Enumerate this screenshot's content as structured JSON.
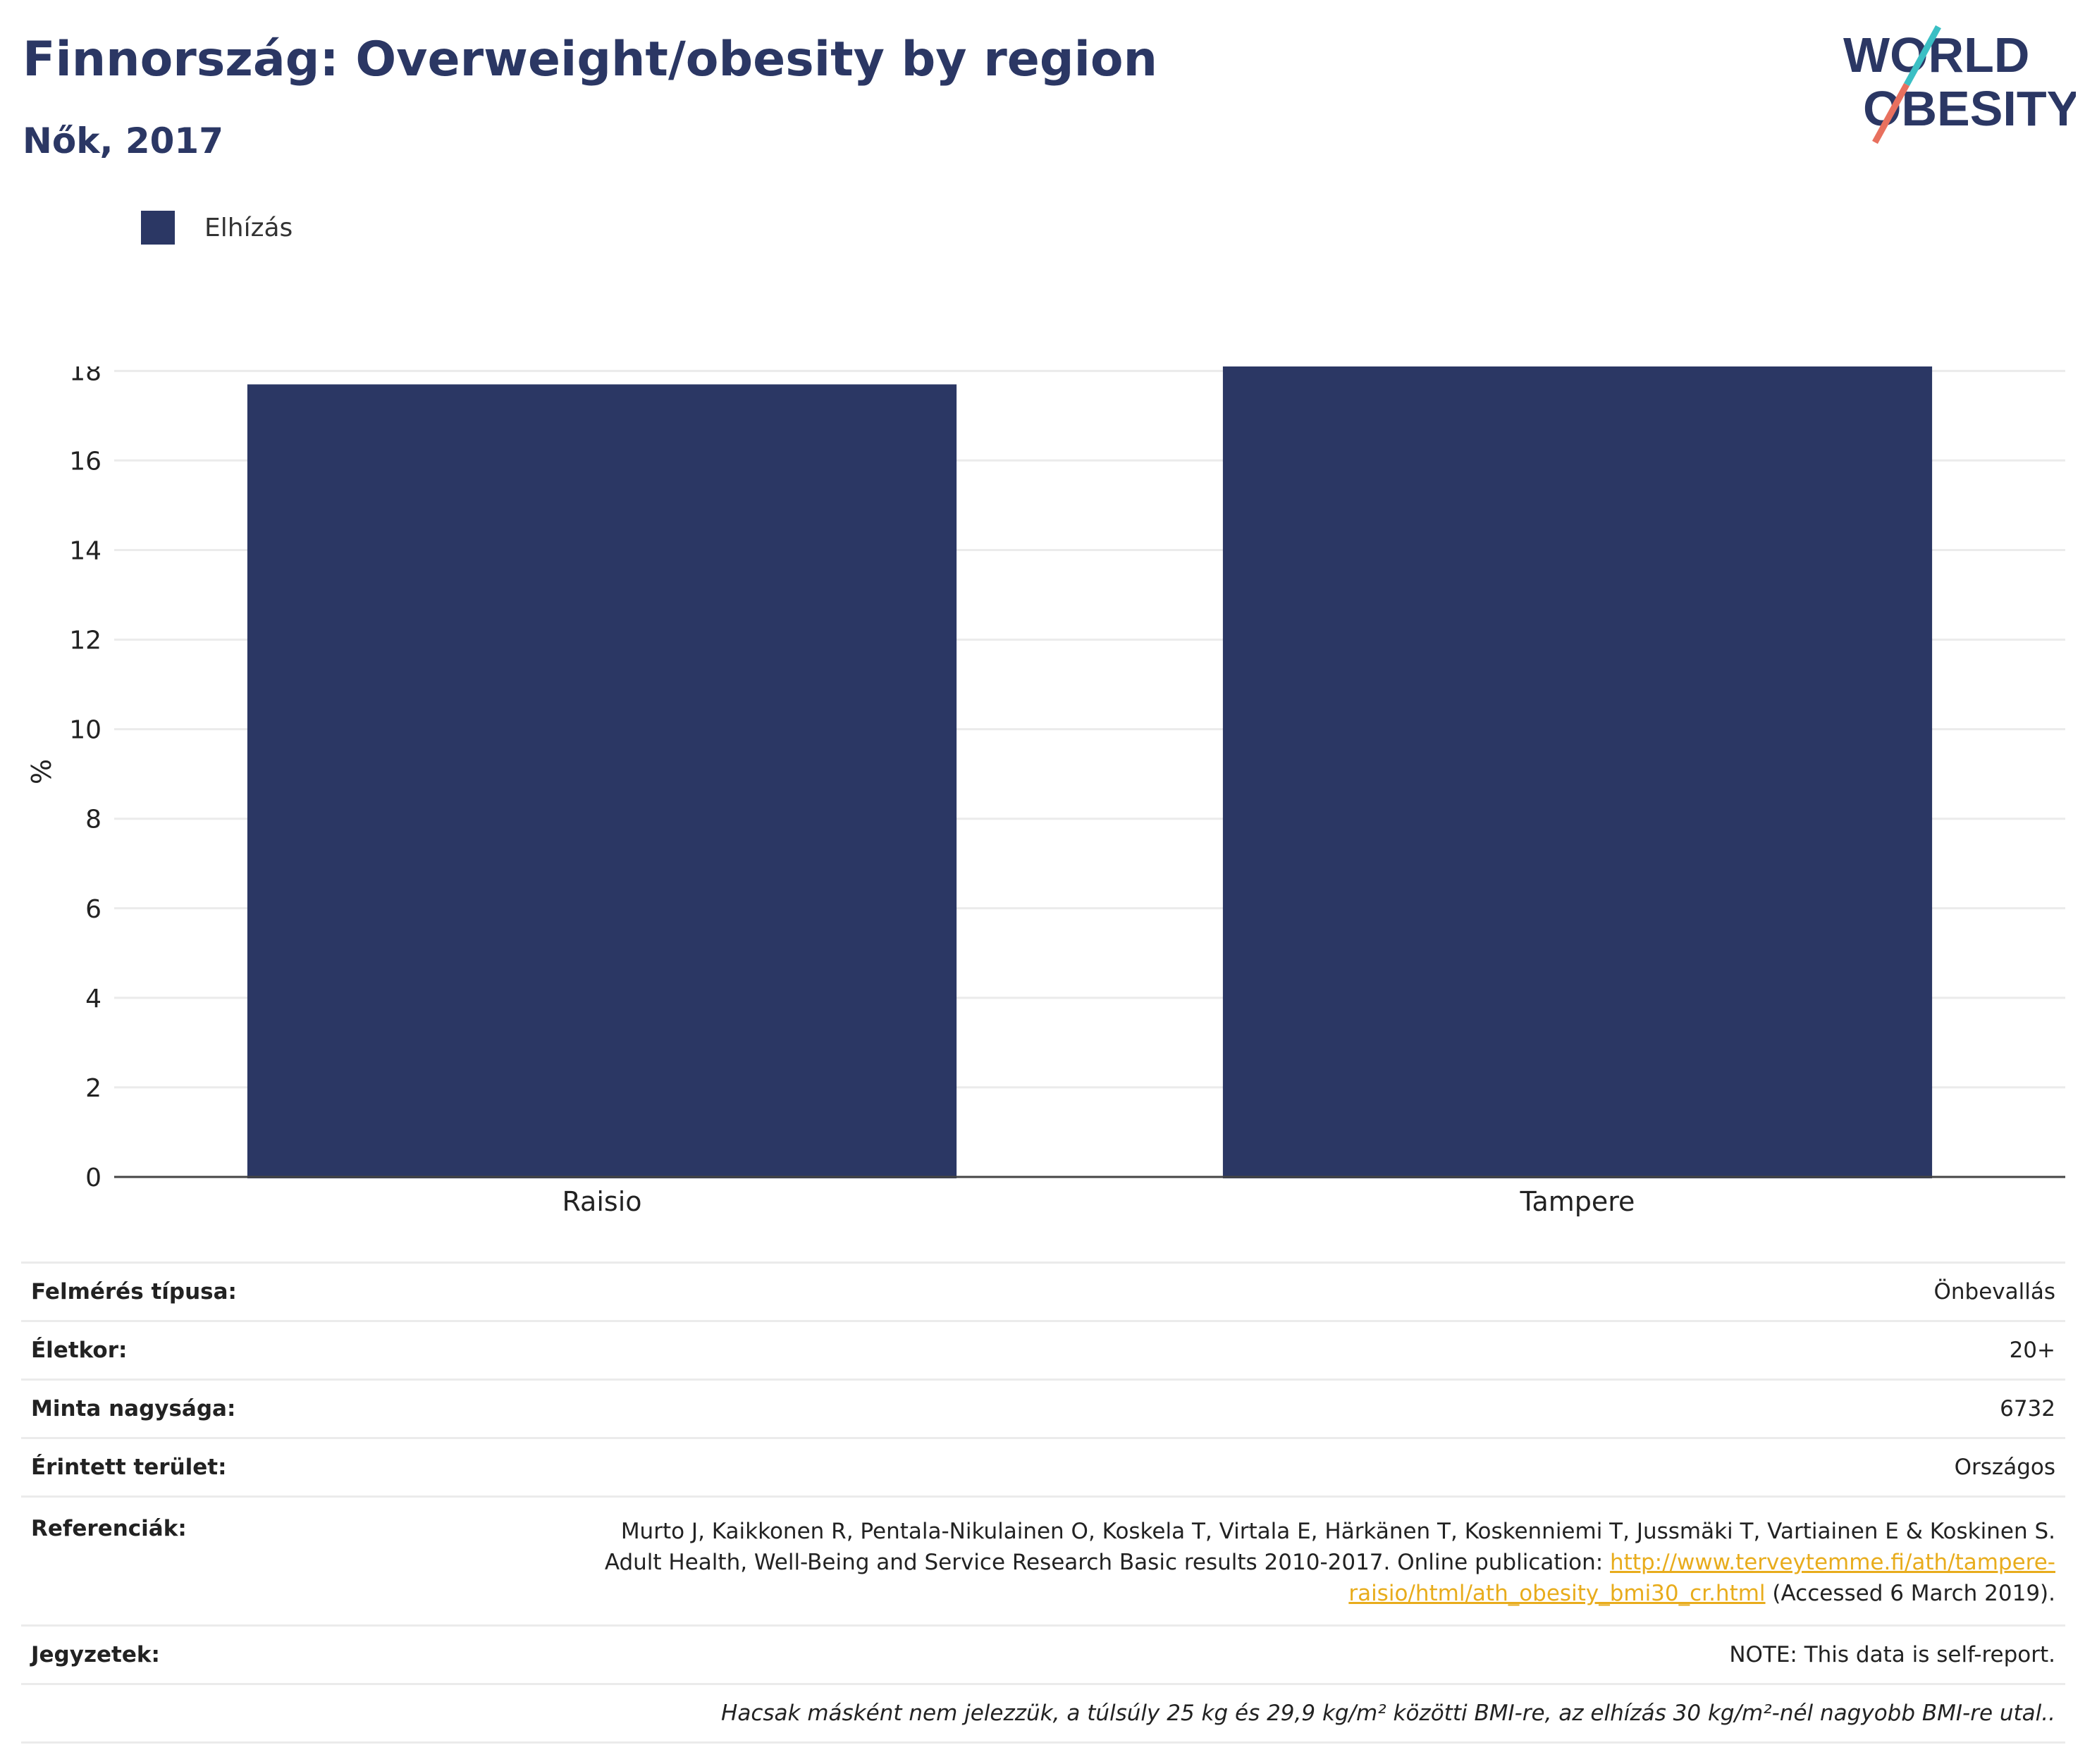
{
  "header": {
    "title": "Finnország: Overweight/obesity by region",
    "subtitle": "Nők, 2017"
  },
  "logo": {
    "line1": "WORLD",
    "line2": "OBESITY",
    "colors": {
      "text": "#2b3764",
      "slash_teal": "#3bbfc4",
      "slash_coral": "#e8705e"
    }
  },
  "legend": {
    "label": "Elhízás",
    "color": "#2b3764"
  },
  "chart_data": {
    "type": "bar",
    "categories": [
      "Raisio",
      "Tampere"
    ],
    "series": [
      {
        "name": "Elhízás",
        "values": [
          17.7,
          18.1
        ],
        "color": "#2b3764"
      }
    ],
    "xlabel": "",
    "ylabel": "%",
    "ylim": [
      0,
      18.1
    ],
    "yticks": [
      0,
      2,
      4,
      6,
      8,
      10,
      12,
      14,
      16,
      18
    ],
    "grid": true,
    "legend_position": "top-left"
  },
  "meta": {
    "survey_type": {
      "label": "Felmérés típusa:",
      "value": "Önbevallás"
    },
    "age": {
      "label": "Életkor:",
      "value": "20+"
    },
    "sample_size": {
      "label": "Minta nagysága:",
      "value": "6732"
    },
    "area": {
      "label": "Érintett terület:",
      "value": "Országos"
    },
    "references": {
      "label": "Referenciák:",
      "line1": "Murto J, Kaikkonen R, Pentala-Nikulainen O, Koskela T, Virtala E, Härkänen T, Koskenniemi T, Jussmäki T, Vartiainen E & Koskinen S.",
      "line2_text": "Adult Health, Well-Being and Service Research Basic results 2010-2017. Online publication: ",
      "link_part1": "http://www.terveytemme.fi/ath/tampere-",
      "link_part2": "raisio/html/ath_obesity_bmi30_cr.html",
      "accessed": " (Accessed 6 March 2019)."
    },
    "notes": {
      "label": "Jegyzetek:",
      "value": "NOTE: This data is self-report."
    },
    "footnote": "Hacsak másként nem jelezzük, a túlsúly 25 kg és 29,9 kg/m² közötti BMI-re, az elhízás 30 kg/m²-nél nagyobb BMI-re utal.."
  }
}
